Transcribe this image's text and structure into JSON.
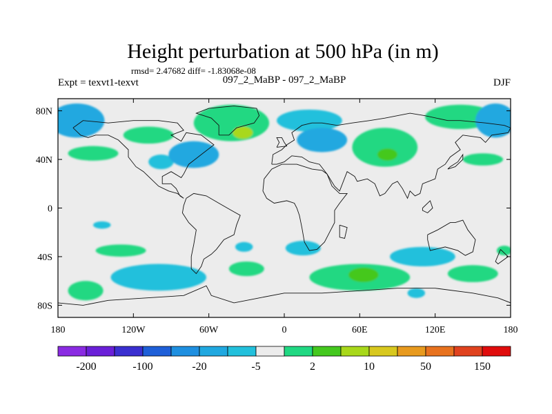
{
  "chart_data": {
    "type": "contour-map",
    "title": "Height perturbation at 500 hPa (in m)",
    "stats": "rmsd= 2.47682 diff= -1.83068e-08",
    "left_label": "Expt = texvt1-texvt",
    "center_label": "097_2_MaBP - 097_2_MaBP",
    "right_label": "DJF",
    "lon_range": [
      -180,
      180
    ],
    "lat_range": [
      -90,
      90
    ],
    "x_ticks": [
      {
        "value": -180,
        "label": "180"
      },
      {
        "value": -120,
        "label": "120W"
      },
      {
        "value": -60,
        "label": "60W"
      },
      {
        "value": 0,
        "label": "0"
      },
      {
        "value": 60,
        "label": "60E"
      },
      {
        "value": 120,
        "label": "120E"
      },
      {
        "value": 180,
        "label": "180"
      }
    ],
    "y_ticks": [
      {
        "value": 80,
        "label": "80N"
      },
      {
        "value": 40,
        "label": "40N"
      },
      {
        "value": 0,
        "label": "0"
      },
      {
        "value": -40,
        "label": "40S"
      },
      {
        "value": -80,
        "label": "80S"
      }
    ],
    "colorbar": {
      "colors": [
        "#8a2be2",
        "#6a1fd8",
        "#3a2fd0",
        "#1e5fd8",
        "#1e8fe0",
        "#20a8e0",
        "#22c0dc",
        "#ececec",
        "#20d882",
        "#44c81e",
        "#a8d81a",
        "#d8c81e",
        "#e89a1e",
        "#e8721e",
        "#e0421e",
        "#e00c0c"
      ],
      "labels": [
        {
          "index": 1,
          "text": "-200"
        },
        {
          "index": 3,
          "text": "-100"
        },
        {
          "index": 5,
          "text": "-20"
        },
        {
          "index": 7,
          "text": "-5"
        },
        {
          "index": 9,
          "text": "2"
        },
        {
          "index": 11,
          "text": "10"
        },
        {
          "index": 13,
          "text": "50"
        },
        {
          "index": 15,
          "text": "150"
        }
      ]
    },
    "anomalies": [
      {
        "lon": -165,
        "lat": 72,
        "rlon": 22,
        "rlat": 14,
        "level": 5,
        "name": "blue-n-pacific"
      },
      {
        "lon": -152,
        "lat": 45,
        "rlon": 20,
        "rlat": 6,
        "level": 8,
        "name": "green-n-pacific"
      },
      {
        "lon": -108,
        "lat": 60,
        "rlon": 20,
        "rlat": 7,
        "level": 8,
        "name": "green-canada"
      },
      {
        "lon": -98,
        "lat": 38,
        "rlon": 10,
        "rlat": 6,
        "level": 6,
        "name": "cyan-n-america"
      },
      {
        "lon": -72,
        "lat": 44,
        "rlon": 20,
        "rlat": 11,
        "level": 5,
        "name": "blue-n-america"
      },
      {
        "lon": -42,
        "lat": 70,
        "rlon": 30,
        "rlat": 15,
        "level": 8,
        "name": "green-greenland"
      },
      {
        "lon": -33,
        "lat": 62,
        "rlon": 8,
        "rlat": 5,
        "level": 10,
        "name": "yellow-greenland"
      },
      {
        "lon": 20,
        "lat": 72,
        "rlon": 26,
        "rlat": 9,
        "level": 6,
        "name": "cyan-scandinavia"
      },
      {
        "lon": 30,
        "lat": 56,
        "rlon": 20,
        "rlat": 10,
        "level": 5,
        "name": "blue-europe"
      },
      {
        "lon": 80,
        "lat": 50,
        "rlon": 26,
        "rlat": 16,
        "level": 8,
        "name": "green-asia"
      },
      {
        "lon": 82,
        "lat": 44,
        "rlon": 8,
        "rlat": 5,
        "level": 9,
        "name": "lime-asia"
      },
      {
        "lon": 140,
        "lat": 75,
        "rlon": 28,
        "rlat": 10,
        "level": 8,
        "name": "green-siberia"
      },
      {
        "lon": 168,
        "lat": 72,
        "rlon": 16,
        "rlat": 14,
        "level": 5,
        "name": "blue-bering"
      },
      {
        "lon": 158,
        "lat": 40,
        "rlon": 16,
        "rlat": 5,
        "level": 8,
        "name": "green-nw-pacific"
      },
      {
        "lon": -145,
        "lat": -14,
        "rlon": 7,
        "rlat": 3,
        "level": 6,
        "name": "cyan-s-pacific"
      },
      {
        "lon": -130,
        "lat": -35,
        "rlon": 20,
        "rlat": 5,
        "level": 8,
        "name": "green-s-pacific"
      },
      {
        "lon": -100,
        "lat": -57,
        "rlon": 38,
        "rlat": 11,
        "level": 6,
        "name": "cyan-southern-ocean"
      },
      {
        "lon": -158,
        "lat": -68,
        "rlon": 14,
        "rlat": 8,
        "level": 8,
        "name": "green-s-pacific-2"
      },
      {
        "lon": -30,
        "lat": -50,
        "rlon": 14,
        "rlat": 6,
        "level": 8,
        "name": "green-s-atlantic"
      },
      {
        "lon": -32,
        "lat": -32,
        "rlon": 7,
        "rlat": 4,
        "level": 6,
        "name": "cyan-s-atlantic"
      },
      {
        "lon": 15,
        "lat": -33,
        "rlon": 14,
        "rlat": 6,
        "level": 6,
        "name": "cyan-s-africa"
      },
      {
        "lon": 60,
        "lat": -57,
        "rlon": 40,
        "rlat": 11,
        "level": 8,
        "name": "green-indian-ocean"
      },
      {
        "lon": 63,
        "lat": -55,
        "rlon": 12,
        "rlat": 6,
        "level": 9,
        "name": "lime-indian-ocean"
      },
      {
        "lon": 110,
        "lat": -40,
        "rlon": 26,
        "rlat": 8,
        "level": 6,
        "name": "cyan-australia"
      },
      {
        "lon": 150,
        "lat": -54,
        "rlon": 20,
        "rlat": 7,
        "level": 8,
        "name": "green-tasman"
      },
      {
        "lon": 105,
        "lat": -70,
        "rlon": 7,
        "rlat": 4,
        "level": 6,
        "name": "cyan-antarctic"
      },
      {
        "lon": 175,
        "lat": -35,
        "rlon": 6,
        "rlat": 4,
        "level": 8,
        "name": "green-nz"
      }
    ],
    "coastlines": [
      {
        "name": "north-america",
        "points": [
          [
            -168,
            66
          ],
          [
            -160,
            72
          ],
          [
            -140,
            70
          ],
          [
            -120,
            72
          ],
          [
            -100,
            72
          ],
          [
            -85,
            70
          ],
          [
            -80,
            64
          ],
          [
            -90,
            60
          ],
          [
            -82,
            55
          ],
          [
            -78,
            62
          ],
          [
            -66,
            60
          ],
          [
            -56,
            52
          ],
          [
            -66,
            44
          ],
          [
            -76,
            36
          ],
          [
            -80,
            28
          ],
          [
            -82,
            25
          ],
          [
            -90,
            30
          ],
          [
            -97,
            26
          ],
          [
            -97,
            20
          ],
          [
            -90,
            20
          ],
          [
            -86,
            16
          ],
          [
            -83,
            10
          ],
          [
            -80,
            8
          ],
          [
            -85,
            12
          ],
          [
            -92,
            14
          ],
          [
            -100,
            18
          ],
          [
            -106,
            24
          ],
          [
            -112,
            30
          ],
          [
            -118,
            34
          ],
          [
            -124,
            42
          ],
          [
            -124,
            48
          ],
          [
            -132,
            56
          ],
          [
            -140,
            60
          ],
          [
            -150,
            60
          ],
          [
            -156,
            58
          ],
          [
            -162,
            60
          ],
          [
            -166,
            64
          ],
          [
            -168,
            66
          ]
        ]
      },
      {
        "name": "greenland",
        "points": [
          [
            -52,
            60
          ],
          [
            -44,
            60
          ],
          [
            -38,
            66
          ],
          [
            -24,
            70
          ],
          [
            -20,
            76
          ],
          [
            -22,
            82
          ],
          [
            -40,
            84
          ],
          [
            -60,
            82
          ],
          [
            -70,
            78
          ],
          [
            -58,
            74
          ],
          [
            -52,
            68
          ],
          [
            -52,
            60
          ]
        ]
      },
      {
        "name": "south-america",
        "points": [
          [
            -78,
            8
          ],
          [
            -72,
            12
          ],
          [
            -62,
            10
          ],
          [
            -52,
            4
          ],
          [
            -42,
            -2
          ],
          [
            -35,
            -6
          ],
          [
            -38,
            -14
          ],
          [
            -40,
            -22
          ],
          [
            -48,
            -26
          ],
          [
            -54,
            -34
          ],
          [
            -58,
            -38
          ],
          [
            -64,
            -42
          ],
          [
            -66,
            -48
          ],
          [
            -70,
            -54
          ],
          [
            -74,
            -50
          ],
          [
            -74,
            -40
          ],
          [
            -72,
            -30
          ],
          [
            -70,
            -18
          ],
          [
            -76,
            -12
          ],
          [
            -81,
            -4
          ],
          [
            -80,
            2
          ],
          [
            -78,
            8
          ]
        ]
      },
      {
        "name": "eurasia",
        "points": [
          [
            -10,
            36
          ],
          [
            -9,
            44
          ],
          [
            -2,
            48
          ],
          [
            2,
            52
          ],
          [
            8,
            56
          ],
          [
            6,
            62
          ],
          [
            14,
            68
          ],
          [
            22,
            70
          ],
          [
            30,
            70
          ],
          [
            42,
            68
          ],
          [
            54,
            70
          ],
          [
            68,
            72
          ],
          [
            80,
            74
          ],
          [
            100,
            78
          ],
          [
            112,
            76
          ],
          [
            130,
            72
          ],
          [
            140,
            72
          ],
          [
            160,
            70
          ],
          [
            175,
            68
          ],
          [
            180,
            66
          ],
          [
            178,
            62
          ],
          [
            165,
            60
          ],
          [
            160,
            54
          ],
          [
            156,
            58
          ],
          [
            142,
            60
          ],
          [
            136,
            54
          ],
          [
            140,
            48
          ],
          [
            132,
            42
          ],
          [
            128,
            36
          ],
          [
            122,
            32
          ],
          [
            120,
            24
          ],
          [
            110,
            20
          ],
          [
            108,
            12
          ],
          [
            104,
            10
          ],
          [
            100,
            14
          ],
          [
            98,
            8
          ],
          [
            94,
            16
          ],
          [
            90,
            22
          ],
          [
            86,
            20
          ],
          [
            80,
            12
          ],
          [
            76,
            10
          ],
          [
            72,
            20
          ],
          [
            66,
            24
          ],
          [
            58,
            22
          ],
          [
            56,
            26
          ],
          [
            50,
            30
          ],
          [
            44,
            14
          ],
          [
            40,
            18
          ],
          [
            34,
            28
          ],
          [
            28,
            36
          ],
          [
            20,
            38
          ],
          [
            14,
            42
          ],
          [
            6,
            43
          ],
          [
            0,
            38
          ],
          [
            -6,
            36
          ],
          [
            -10,
            36
          ]
        ]
      },
      {
        "name": "africa",
        "points": [
          [
            -16,
            24
          ],
          [
            -17,
            14
          ],
          [
            -14,
            8
          ],
          [
            -8,
            4
          ],
          [
            2,
            6
          ],
          [
            8,
            4
          ],
          [
            10,
            0
          ],
          [
            12,
            -6
          ],
          [
            14,
            -16
          ],
          [
            16,
            -28
          ],
          [
            20,
            -35
          ],
          [
            26,
            -34
          ],
          [
            32,
            -28
          ],
          [
            36,
            -20
          ],
          [
            40,
            -12
          ],
          [
            40,
            -2
          ],
          [
            44,
            4
          ],
          [
            50,
            12
          ],
          [
            44,
            12
          ],
          [
            38,
            18
          ],
          [
            34,
            28
          ],
          [
            30,
            31
          ],
          [
            22,
            32
          ],
          [
            10,
            36
          ],
          [
            -2,
            36
          ],
          [
            -10,
            32
          ],
          [
            -16,
            24
          ]
        ]
      },
      {
        "name": "australia",
        "points": [
          [
            114,
            -22
          ],
          [
            122,
            -18
          ],
          [
            132,
            -12
          ],
          [
            136,
            -12
          ],
          [
            142,
            -10
          ],
          [
            146,
            -18
          ],
          [
            152,
            -26
          ],
          [
            150,
            -36
          ],
          [
            144,
            -39
          ],
          [
            138,
            -35
          ],
          [
            128,
            -32
          ],
          [
            116,
            -35
          ],
          [
            114,
            -26
          ],
          [
            114,
            -22
          ]
        ]
      },
      {
        "name": "antarctica",
        "points": [
          [
            -180,
            -78
          ],
          [
            -160,
            -80
          ],
          [
            -140,
            -76
          ],
          [
            -110,
            -74
          ],
          [
            -80,
            -72
          ],
          [
            -62,
            -64
          ],
          [
            -58,
            -72
          ],
          [
            -40,
            -78
          ],
          [
            -20,
            -74
          ],
          [
            0,
            -70
          ],
          [
            30,
            -70
          ],
          [
            60,
            -68
          ],
          [
            90,
            -66
          ],
          [
            120,
            -66
          ],
          [
            150,
            -70
          ],
          [
            170,
            -74
          ],
          [
            180,
            -78
          ]
        ]
      },
      {
        "name": "britain",
        "points": [
          [
            -6,
            50
          ],
          [
            2,
            51
          ],
          [
            0,
            54
          ],
          [
            -2,
            58
          ],
          [
            -6,
            58
          ],
          [
            -4,
            54
          ],
          [
            -6,
            50
          ]
        ]
      },
      {
        "name": "madagascar",
        "points": [
          [
            44,
            -14
          ],
          [
            50,
            -16
          ],
          [
            48,
            -25
          ],
          [
            44,
            -24
          ],
          [
            44,
            -14
          ]
        ]
      },
      {
        "name": "japan",
        "points": [
          [
            130,
            32
          ],
          [
            136,
            34
          ],
          [
            142,
            40
          ],
          [
            142,
            44
          ],
          [
            138,
            38
          ],
          [
            132,
            34
          ],
          [
            130,
            32
          ]
        ]
      },
      {
        "name": "borneo",
        "points": [
          [
            110,
            0
          ],
          [
            116,
            6
          ],
          [
            118,
            0
          ],
          [
            114,
            -4
          ],
          [
            110,
            -2
          ],
          [
            110,
            0
          ]
        ]
      },
      {
        "name": "new-zealand",
        "points": [
          [
            172,
            -34
          ],
          [
            176,
            -38
          ],
          [
            178,
            -40
          ],
          [
            170,
            -46
          ],
          [
            168,
            -44
          ],
          [
            172,
            -34
          ]
        ]
      }
    ]
  }
}
